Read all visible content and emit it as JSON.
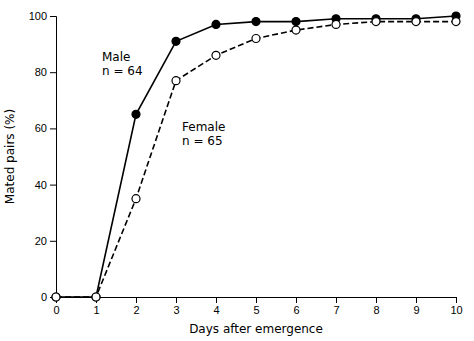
{
  "chart_data": {
    "type": "line",
    "x": [
      0,
      1,
      2,
      3,
      4,
      5,
      6,
      7,
      8,
      9,
      10
    ],
    "series": [
      {
        "color": "#000000",
        "line_style": "solid",
        "marker": "circle",
        "values": [
          0,
          0,
          65,
          91,
          97,
          98,
          98,
          99,
          99,
          99,
          100
        ]
      },
      {
        "color": "#000000",
        "line_style": "dashed",
        "marker": "open-circle",
        "values": [
          0,
          0,
          35,
          77,
          86,
          92,
          95,
          97,
          98,
          98,
          98
        ]
      }
    ],
    "annotations": [
      {
        "text": "Male\nn = 64",
        "x": 1.15,
        "y": 88
      },
      {
        "text": "Female\nn = 65",
        "x": 3.15,
        "y": 63
      }
    ],
    "x_label": "Days after emergence",
    "y_label": "Mated pairs (%)",
    "xlim": [
      0,
      10
    ],
    "ylim": [
      0,
      100
    ],
    "xticks": [
      0,
      1,
      2,
      3,
      4,
      5,
      6,
      7,
      8,
      9,
      10
    ],
    "yticks": [
      0,
      20,
      40,
      60,
      80,
      100
    ],
    "grid": false
  }
}
